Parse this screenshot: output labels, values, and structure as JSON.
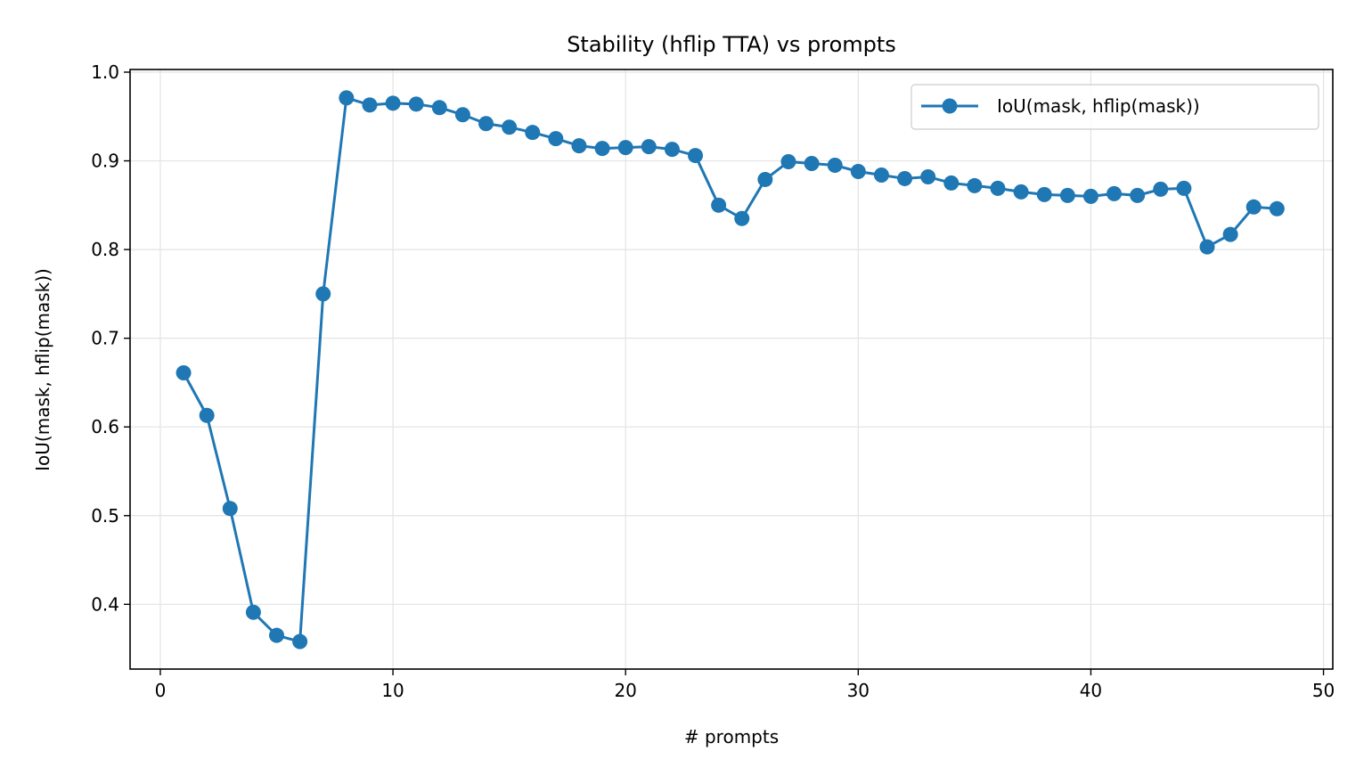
{
  "chart_data": {
    "type": "line",
    "title": "Stability (hflip TTA) vs prompts",
    "xlabel": "# prompts",
    "ylabel": "IoU(mask, hflip(mask))",
    "xlim": [
      -1.3,
      50.4
    ],
    "ylim": [
      0.327,
      1.003
    ],
    "xticks": [
      0,
      10,
      20,
      30,
      40,
      50
    ],
    "xtick_labels": [
      "0",
      "10",
      "20",
      "30",
      "40",
      "50"
    ],
    "yticks": [
      0.4,
      0.5,
      0.6,
      0.7,
      0.8,
      0.9,
      1.0
    ],
    "ytick_labels": [
      "0.4",
      "0.5",
      "0.6",
      "0.7",
      "0.8",
      "0.9",
      "1.0"
    ],
    "grid": true,
    "legend_position": "top-right",
    "series": [
      {
        "name": "IoU(mask, hflip(mask))",
        "color": "#1f77b4",
        "marker": "circle",
        "x": [
          1,
          2,
          3,
          4,
          5,
          6,
          7,
          8,
          9,
          10,
          11,
          12,
          13,
          14,
          15,
          16,
          17,
          18,
          19,
          20,
          21,
          22,
          23,
          24,
          25,
          26,
          27,
          28,
          29,
          30,
          31,
          32,
          33,
          34,
          35,
          36,
          37,
          38,
          39,
          40,
          41,
          42,
          43,
          44,
          45,
          46,
          47,
          48
        ],
        "y": [
          0.661,
          0.613,
          0.508,
          0.391,
          0.365,
          0.358,
          0.75,
          0.971,
          0.963,
          0.965,
          0.964,
          0.96,
          0.952,
          0.942,
          0.938,
          0.932,
          0.925,
          0.917,
          0.914,
          0.915,
          0.916,
          0.913,
          0.906,
          0.85,
          0.835,
          0.879,
          0.899,
          0.897,
          0.895,
          0.888,
          0.884,
          0.88,
          0.882,
          0.875,
          0.872,
          0.869,
          0.865,
          0.862,
          0.861,
          0.86,
          0.863,
          0.861,
          0.868,
          0.869,
          0.803,
          0.817,
          0.848,
          0.846
        ]
      }
    ]
  }
}
